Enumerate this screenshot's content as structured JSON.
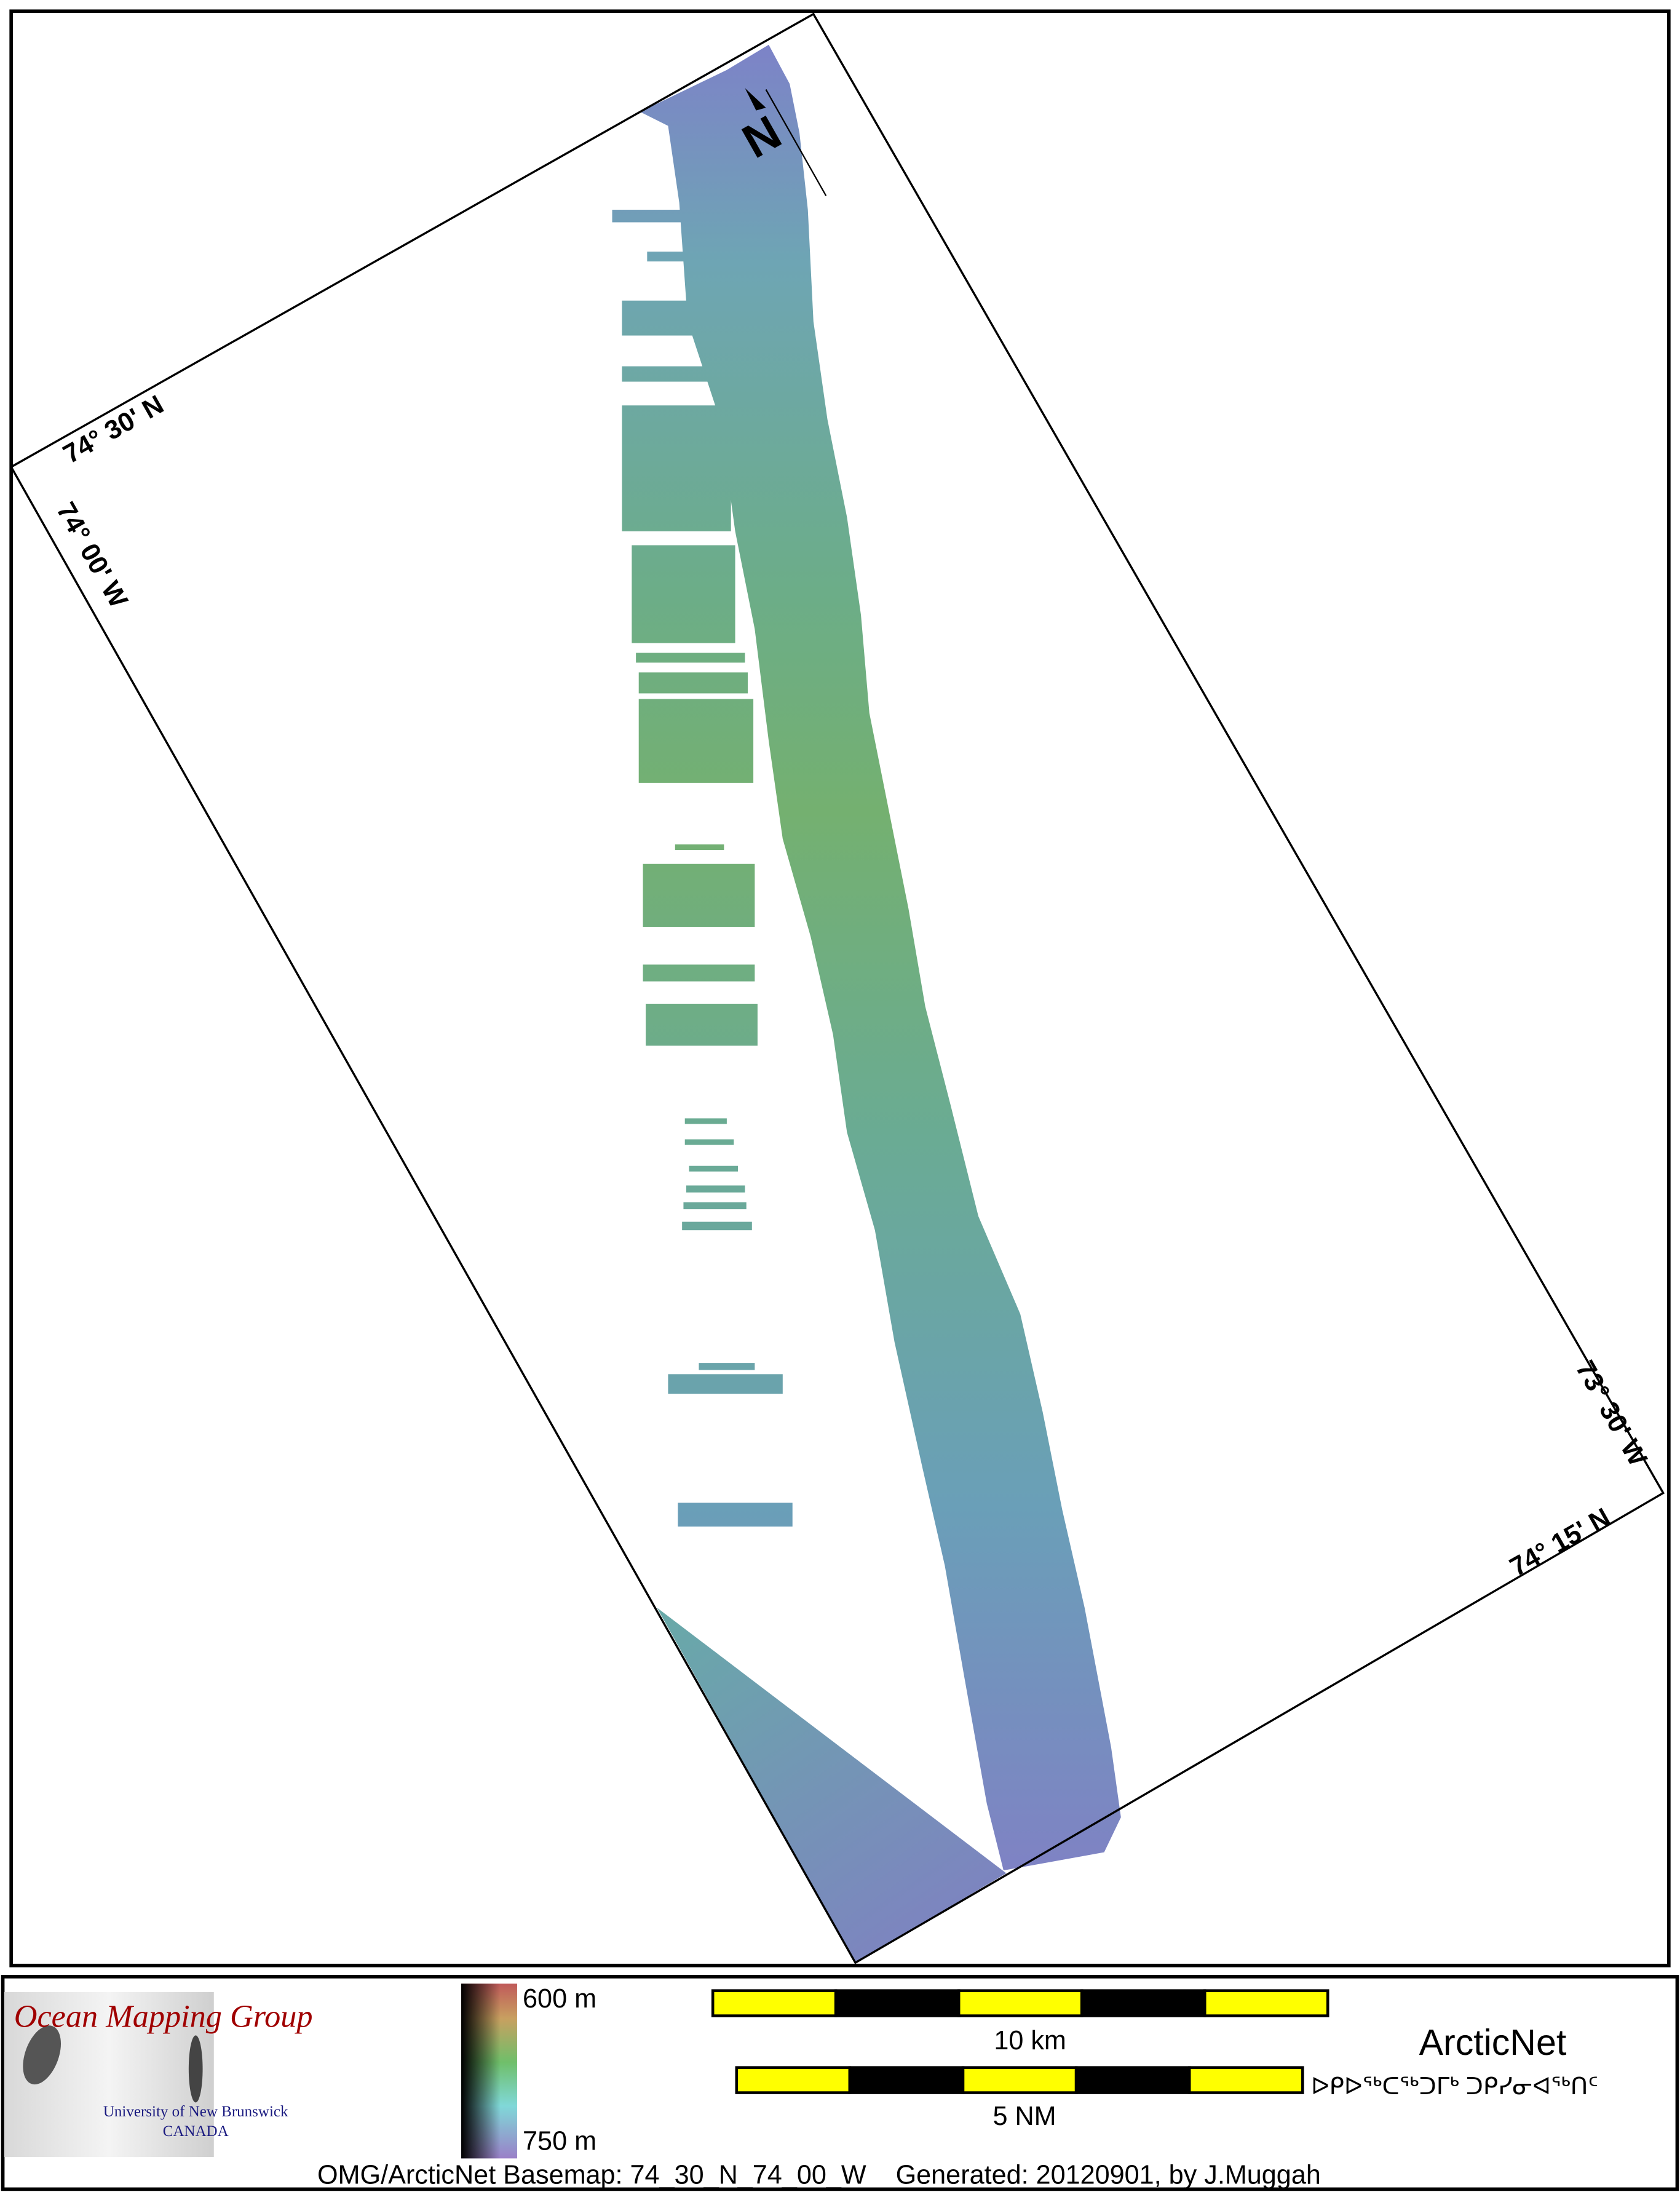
{
  "map": {
    "grid_labels": {
      "top_left_lat": "74° 30' N",
      "left_lon": "74° 00' W",
      "right_lon": "73° 30' W",
      "bottom_right_lat": "74° 15' N"
    },
    "north_arrow": "N",
    "colors": {
      "shallow": "#c06060",
      "mid": "#6fb07a",
      "deep": "#7f84c4"
    }
  },
  "legend": {
    "logo": {
      "title": "Ocean Mapping Group",
      "line1": "University of New Brunswick",
      "line2": "CANADA"
    },
    "depth_scale": {
      "top": "600 m",
      "bottom": "750 m"
    },
    "scale_bars": {
      "km": "10 km",
      "nm": "5 NM",
      "bar_color": "#ffff00"
    },
    "arcticnet": {
      "name": "ArcticNet",
      "inuktitut": "ᐅᑭᐅᖅᑕᖅᑐᒥᒃ ᑐᑭᓯᓂᐊᖅᑎᑦ"
    },
    "footer": "OMG/ArcticNet Basemap: 74_30_N_74_00_W    Generated: 20120901, by J.Muggah"
  }
}
